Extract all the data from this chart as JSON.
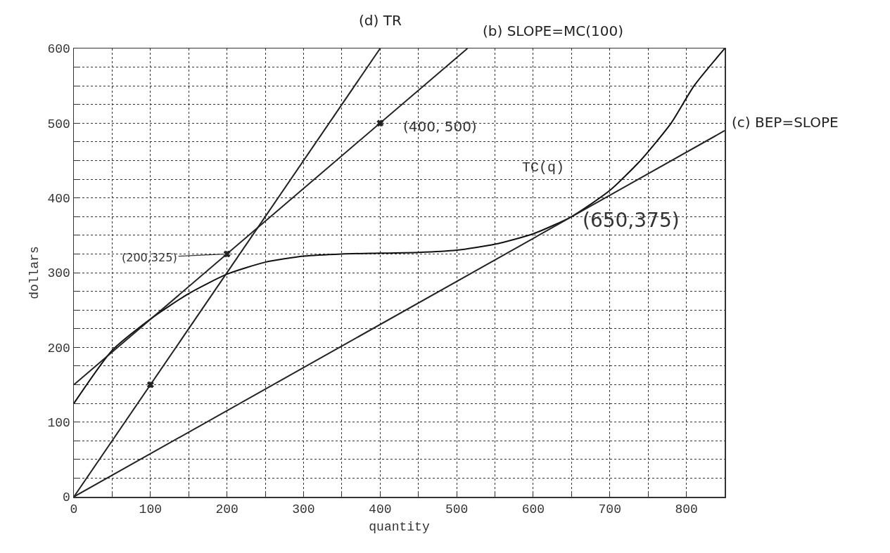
{
  "chart_data": {
    "type": "line",
    "xlabel": "quantity",
    "ylabel": "dollars",
    "xlim": [
      0,
      850
    ],
    "xticks": [
      0,
      {
        "value": 50,
        "label": null
      },
      100,
      {
        "value": 150,
        "label": null
      },
      200,
      {
        "value": 250,
        "label": null
      },
      300,
      {
        "value": 350,
        "label": null
      },
      400,
      {
        "value": 450,
        "label": null
      },
      500,
      {
        "value": 550,
        "label": null
      },
      600,
      {
        "value": 650,
        "label": null
      },
      700,
      {
        "value": 750,
        "label": null
      },
      800
    ],
    "ylim": [
      0,
      600
    ],
    "yticks": [
      0,
      {
        "value": 25,
        "label": null
      },
      {
        "value": 50,
        "label": null
      },
      {
        "value": 75,
        "label": null
      },
      100,
      {
        "value": 125,
        "label": null
      },
      {
        "value": 150,
        "label": null
      },
      {
        "value": 175,
        "label": null
      },
      200,
      {
        "value": 225,
        "label": null
      },
      {
        "value": 250,
        "label": null
      },
      {
        "value": 275,
        "label": null
      },
      300,
      {
        "value": 325,
        "label": null
      },
      {
        "value": 350,
        "label": null
      },
      {
        "value": 375,
        "label": null
      },
      400,
      {
        "value": 425,
        "label": null
      },
      {
        "value": 450,
        "label": null
      },
      {
        "value": 475,
        "label": null
      },
      500,
      {
        "value": 525,
        "label": null
      },
      {
        "value": 550,
        "label": null
      },
      {
        "value": 575,
        "label": null
      },
      600
    ],
    "grid": true,
    "legend": false,
    "line_style": "solid",
    "series": [
      {
        "name": "TC(q)",
        "color": "#111111",
        "x": [
          0,
          50,
          100,
          150,
          200,
          250,
          300,
          350,
          400,
          450,
          500,
          550,
          600,
          650,
          700,
          740,
          780,
          810,
          850
        ],
        "values": [
          125,
          196,
          238,
          272,
          298,
          314,
          322,
          325,
          326,
          327,
          330,
          338,
          352,
          375,
          410,
          450,
          500,
          550,
          600
        ]
      },
      {
        "name": "(b) SLOPE=MC(100)",
        "color": "#222222",
        "x": [
          0,
          514
        ],
        "values": [
          150,
          600
        ]
      },
      {
        "name": "(c) BEP=SLOPE",
        "color": "#222222",
        "x": [
          0,
          850
        ],
        "values": [
          0,
          490
        ]
      },
      {
        "name": "(d) TR",
        "color": "#222222",
        "x": [
          0,
          400
        ],
        "values": [
          0,
          600
        ]
      },
      {
        "type": "scatter",
        "marker": "cross",
        "color": "#222222",
        "x": [
          100,
          200,
          400
        ],
        "values": [
          150,
          325,
          500
        ]
      }
    ],
    "annotations": [
      {
        "text": "(400, 500)",
        "x": 400,
        "y": 500
      },
      {
        "text": "(200,325)",
        "x": 200,
        "y": 325
      },
      {
        "text": "(650,375)",
        "x": 650,
        "y": 375
      }
    ]
  }
}
